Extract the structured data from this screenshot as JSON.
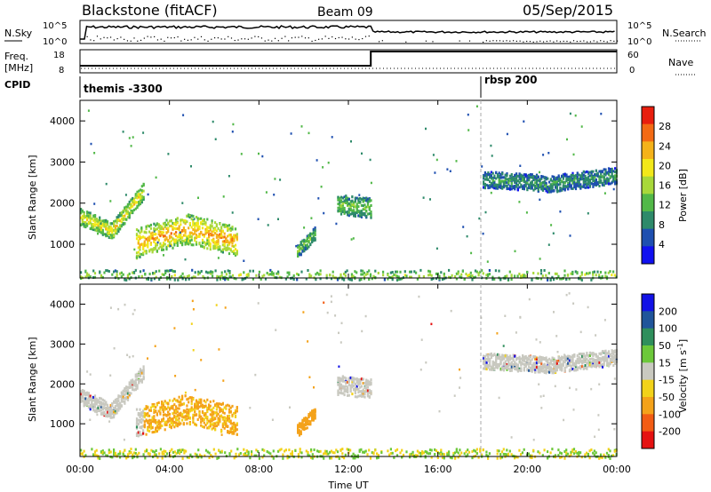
{
  "header": {
    "station": "Blackstone (fitACF)",
    "beam": "Beam 09",
    "date": "05/Sep/2015"
  },
  "noise_panel": {
    "left_label": "N.Sky",
    "right_label": "N.Search",
    "left_ticks": [
      "10^5",
      "10^0"
    ],
    "right_ticks": [
      "10^5",
      "10^0"
    ]
  },
  "freq_panel": {
    "left_label_1": "Freq.",
    "left_label_2": "[MHz]",
    "right_label": "Nave",
    "left_ticks": [
      "18",
      "8"
    ],
    "right_ticks": [
      "60",
      "0"
    ]
  },
  "cpid_panel": {
    "label": "CPID",
    "modes": [
      {
        "name": "themis -3300",
        "start": "00:00"
      },
      {
        "name": "rbsp 200",
        "start": "18:00"
      }
    ]
  },
  "power_panel": {
    "ylabel": "Slant Range [km]",
    "yticks": [
      "1000",
      "2000",
      "3000",
      "4000"
    ],
    "colorbar_label": "Power [dB]",
    "colorbar_ticks": [
      "4",
      "8",
      "12",
      "16",
      "20",
      "24",
      "28"
    ],
    "colors": [
      "#1010f0",
      "#1e4fb0",
      "#2e8a6a",
      "#52b848",
      "#a8d83a",
      "#f2e81a",
      "#f4b21a",
      "#f36a14",
      "#e81e0e"
    ]
  },
  "velocity_panel": {
    "ylabel": "Slant Range [km]",
    "yticks": [
      "1000",
      "2000",
      "3000",
      "4000"
    ],
    "colorbar_label": "Velocity [m s",
    "colorbar_label_sup": "-1",
    "colorbar_label_end": "]",
    "colorbar_ticks": [
      "200",
      "100",
      "50",
      "15",
      "-15",
      "-50",
      "-100",
      "-200"
    ],
    "colors": [
      "#1212e6",
      "#20559a",
      "#2f8f5c",
      "#6cc83a",
      "#c9c9c0",
      "#f2d21a",
      "#f4a21a",
      "#f25c14",
      "#e51212"
    ]
  },
  "xaxis": {
    "ticks": [
      "00:00",
      "04:00",
      "08:00",
      "12:00",
      "16:00",
      "20:00",
      "00:00"
    ],
    "label": "Time UT"
  },
  "chart_data": {
    "type": "heatmap",
    "x_range_hours": [
      0,
      24
    ],
    "y_range_km": [
      180,
      4500
    ],
    "freq_mhz": [
      {
        "start": 0,
        "end": 13,
        "value": 10
      },
      {
        "start": 13,
        "end": 24,
        "value": 17
      }
    ],
    "mode_change_hours": 18,
    "power_features": [
      {
        "t": [
          0.0,
          2.8
        ],
        "center_km": [
          1700,
          1350,
          2300
        ],
        "width_km": 250,
        "power_db": 20
      },
      {
        "t": [
          2.5,
          7.0
        ],
        "center_km": [
          1050,
          1400,
          1100
        ],
        "width_km": 450,
        "power_db": 24
      },
      {
        "t": [
          9.7,
          10.5
        ],
        "center_km": [
          850,
          1300
        ],
        "width_km": 200,
        "power_db": 14
      },
      {
        "t": [
          11.5,
          13.0
        ],
        "center_km": [
          2000,
          1900
        ],
        "width_km": 300,
        "power_db": 14
      },
      {
        "t": [
          18.0,
          24.0
        ],
        "center_km": [
          2600,
          2500,
          2700
        ],
        "width_km": 250,
        "power_db": 10
      },
      {
        "t": [
          0.0,
          24.0
        ],
        "center_km": [
          280
        ],
        "width_km": 150,
        "power_db": 16
      }
    ]
  }
}
